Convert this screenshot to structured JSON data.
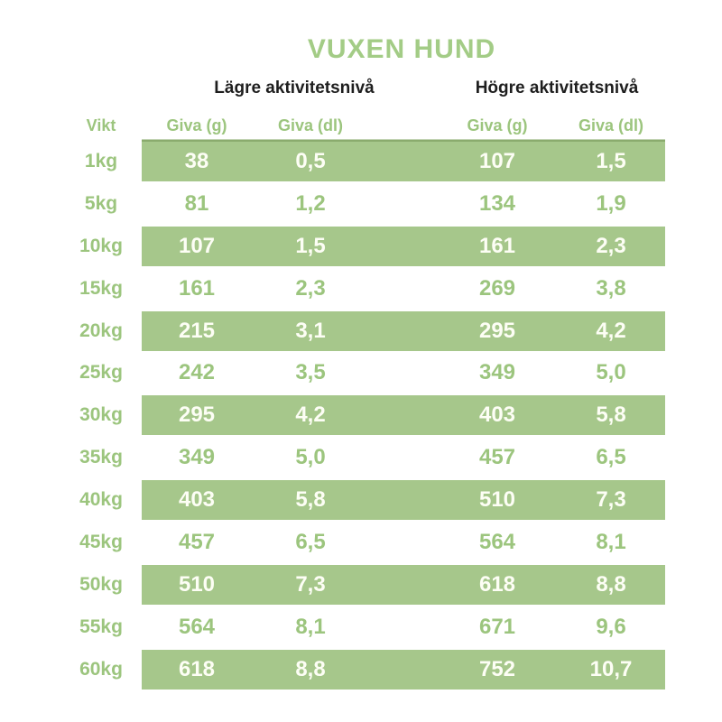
{
  "title": "VUXEN HUND",
  "colors": {
    "band_green": "#a6c78b",
    "header_rule_green": "#8aab6d",
    "text_green": "#9cc57e",
    "title_green": "#a3cc86",
    "value_on_band": "#fdfef5",
    "group_header_black": "#1e1e1e",
    "background": "#ffffff"
  },
  "chart_data": {
    "type": "table",
    "title": "VUXEN HUND",
    "group_headers": [
      "Lägre aktivitetsnivå",
      "Högre aktivitetsnivå"
    ],
    "columns": [
      "Vikt",
      "Giva (g)",
      "Giva (dl)",
      "Giva (g)",
      "Giva (dl)"
    ],
    "rows": [
      {
        "vikt": "1kg",
        "values": [
          "38",
          "0,5",
          "107",
          "1,5"
        ],
        "banded": true
      },
      {
        "vikt": "5kg",
        "values": [
          "81",
          "1,2",
          "134",
          "1,9"
        ],
        "banded": false
      },
      {
        "vikt": "10kg",
        "values": [
          "107",
          "1,5",
          "161",
          "2,3"
        ],
        "banded": true
      },
      {
        "vikt": "15kg",
        "values": [
          "161",
          "2,3",
          "269",
          "3,8"
        ],
        "banded": false
      },
      {
        "vikt": "20kg",
        "values": [
          "215",
          "3,1",
          "295",
          "4,2"
        ],
        "banded": true
      },
      {
        "vikt": "25kg",
        "values": [
          "242",
          "3,5",
          "349",
          "5,0"
        ],
        "banded": false
      },
      {
        "vikt": "30kg",
        "values": [
          "295",
          "4,2",
          "403",
          "5,8"
        ],
        "banded": true
      },
      {
        "vikt": "35kg",
        "values": [
          "349",
          "5,0",
          "457",
          "6,5"
        ],
        "banded": false
      },
      {
        "vikt": "40kg",
        "values": [
          "403",
          "5,8",
          "510",
          "7,3"
        ],
        "banded": true
      },
      {
        "vikt": "45kg",
        "values": [
          "457",
          "6,5",
          "564",
          "8,1"
        ],
        "banded": false
      },
      {
        "vikt": "50kg",
        "values": [
          "510",
          "7,3",
          "618",
          "8,8"
        ],
        "banded": true
      },
      {
        "vikt": "55kg",
        "values": [
          "564",
          "8,1",
          "671",
          "9,6"
        ],
        "banded": false
      },
      {
        "vikt": "60kg",
        "values": [
          "618",
          "8,8",
          "752",
          "10,7"
        ],
        "banded": true
      }
    ]
  }
}
